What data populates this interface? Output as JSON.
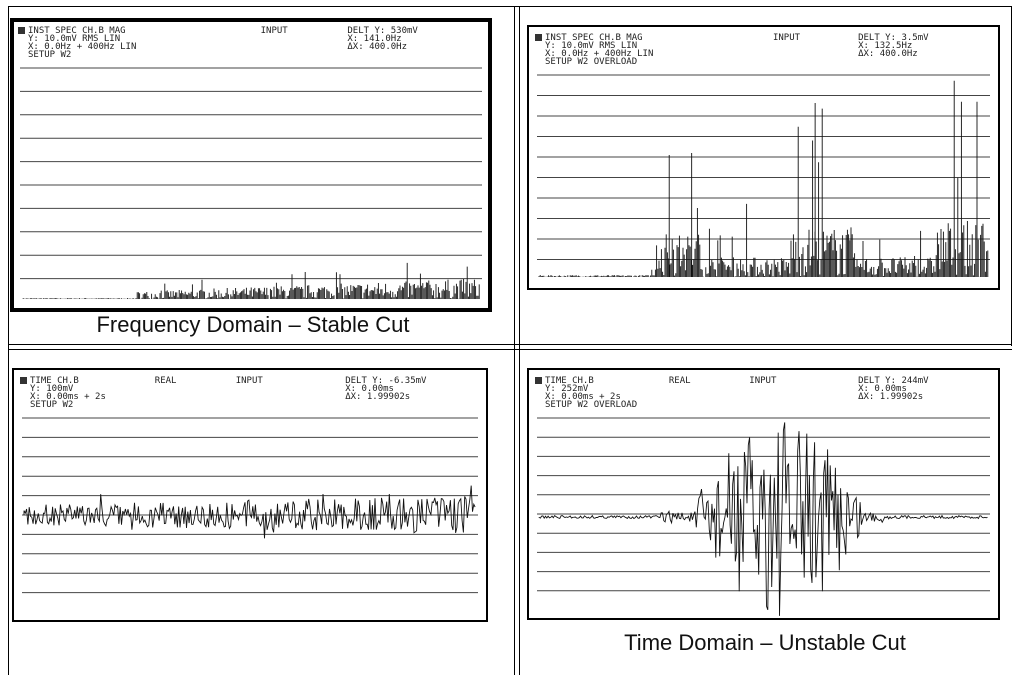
{
  "panels": [
    {
      "left": [
        "INST SPEC CH.B MAG",
        "Y: 10.0mV RMS LIN",
        "X: 0.0Hz + 400Hz LIN",
        "SETUP W2"
      ],
      "center": [
        "INPUT"
      ],
      "right": [
        "DELT Y: 530mV",
        "X: 141.0Hz",
        "ΔX: 400.0Hz"
      ],
      "caption": "Frequency Domain – Stable Cut"
    },
    {
      "left": [
        "INST SPEC CH.B MAG",
        "Y: 10.0mV RMS LIN",
        "X: 0.0Hz + 400Hz LIN",
        "SETUP W2 OVERLOAD"
      ],
      "center": [
        "INPUT"
      ],
      "right": [
        "DELT Y: 3.5mV",
        "X: 132.5Hz",
        "ΔX: 400.0Hz"
      ]
    },
    {
      "left": [
        "TIME CH.B",
        "Y: 100mV",
        "X: 0.00ms + 2s",
        "SETUP W2"
      ],
      "center": [
        "REAL",
        "INPUT"
      ],
      "right": [
        "DELT Y: -6.35mV",
        "X: 0.00ms",
        "ΔX: 1.99902s"
      ]
    },
    {
      "left": [
        "TIME CH.B",
        "Y: 252mV",
        "X: 0.00ms + 2s",
        "SETUP W2 OVERLOAD"
      ],
      "center": [
        "REAL",
        "INPUT"
      ],
      "right": [
        "DELT Y: 244mV",
        "X: 0.00ms",
        "ΔX: 1.99902s"
      ],
      "caption": "Time Domain – Unstable Cut"
    }
  ]
}
